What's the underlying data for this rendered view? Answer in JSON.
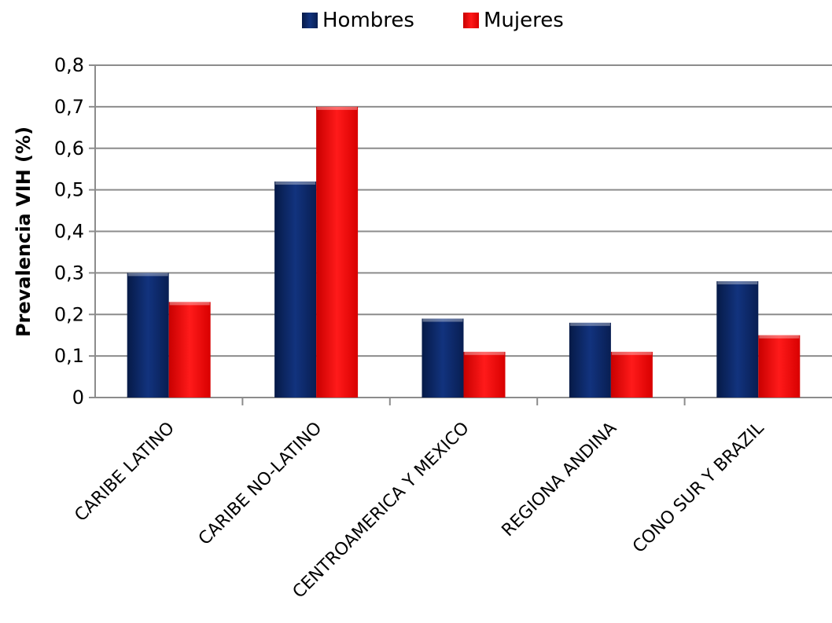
{
  "chart_data": {
    "type": "bar",
    "categories": [
      "CARIBE LATINO",
      "CARIBE NO-LATINO",
      "CENTROAMERICA Y MEXICO",
      "REGIONA ANDINA",
      "CONO SUR Y BRAZIL"
    ],
    "series": [
      {
        "name": "Hombres",
        "values": [
          0.3,
          0.52,
          0.19,
          0.18,
          0.28
        ],
        "color": "#0e2a6b"
      },
      {
        "name": "Mujeres",
        "values": [
          0.23,
          0.7,
          0.11,
          0.11,
          0.15
        ],
        "color": "#ff0000"
      }
    ],
    "ylabel": "Prevalencia VIH (%)",
    "xlabel": "",
    "ylim": [
      0,
      0.8
    ],
    "yticks": [
      {
        "value": 0,
        "label": "0"
      },
      {
        "value": 0.1,
        "label": "0,1"
      },
      {
        "value": 0.2,
        "label": "0,2"
      },
      {
        "value": 0.3,
        "label": "0,3"
      },
      {
        "value": 0.4,
        "label": "0,4"
      },
      {
        "value": 0.5,
        "label": "0,5"
      },
      {
        "value": 0.6,
        "label": "0,6"
      },
      {
        "value": 0.7,
        "label": "0,7"
      },
      {
        "value": 0.8,
        "label": "0,8"
      }
    ],
    "grid": true,
    "legend_position": "top"
  }
}
